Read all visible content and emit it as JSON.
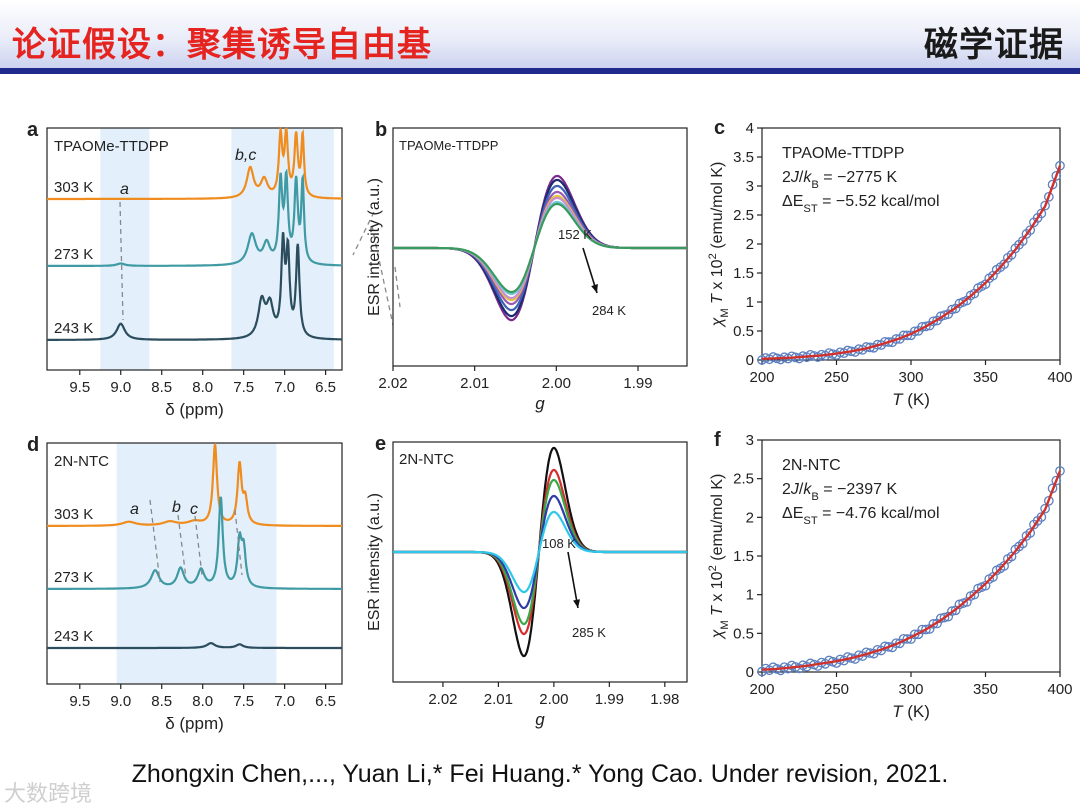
{
  "header": {
    "title": "论证假设：聚集诱导自由基",
    "right_tag": "磁学证据"
  },
  "citation": "Zhongxin Chen,..., Yuan Li,* Fei Huang.* Yong Cao. Under revision, 2021.",
  "watermark": "大数跨境",
  "chart_data": [
    {
      "panel": "a",
      "type": "line",
      "compound": "TPAOMe-TTDPP",
      "xlabel": "δ (ppm)",
      "xlim": [
        9.9,
        6.3
      ],
      "x_reversed": true,
      "xticks": [
        "9.5",
        "9.0",
        "8.5",
        "8.0",
        "7.5",
        "7.0",
        "6.5"
      ],
      "xtick_values": [
        9.5,
        9.0,
        8.5,
        8.0,
        7.5,
        7.0,
        6.5
      ],
      "series": [
        {
          "name": "303 K",
          "color": "#f08c1e"
        },
        {
          "name": "273 K",
          "color": "#3f9aa3"
        },
        {
          "name": "243 K",
          "color": "#2b4d5e"
        }
      ],
      "annotations": [
        "a",
        "b,c"
      ],
      "shaded_regions": [
        [
          9.25,
          8.65
        ],
        [
          7.65,
          6.4
        ]
      ]
    },
    {
      "panel": "b",
      "type": "line",
      "compound": "TPAOMe-TTDPP",
      "xlabel": "g",
      "ylabel": "ESR intensity (a.u.)",
      "xlim": [
        2.02,
        1.984
      ],
      "x_reversed": true,
      "xticks": [
        "2.02",
        "2.01",
        "2.00",
        "1.99"
      ],
      "xtick_values": [
        2.02,
        2.01,
        2.0,
        1.99
      ],
      "temperature_range": [
        "152 K",
        "284 K"
      ],
      "series_colors": [
        "#7a2a8c",
        "#1c2a6e",
        "#3b62b5",
        "#9b59b6",
        "#e4c637",
        "#c98fd1",
        "#6fc8d8",
        "#3a9a5c"
      ]
    },
    {
      "panel": "c",
      "type": "scatter",
      "compound": "TPAOMe-TTDPP",
      "xlabel": "T (K)",
      "ylabel": "χM T x 10² (emu/mol K)",
      "xlim": [
        200,
        400
      ],
      "ylim": [
        0,
        4
      ],
      "xticks": [
        "200",
        "250",
        "300",
        "350",
        "400"
      ],
      "yticks": [
        "0",
        "0.5",
        "1",
        "1.5",
        "2",
        "2.5",
        "3",
        "3.5",
        "4"
      ],
      "fit_J": "2J/kB = −2775 K",
      "fit_dE": "ΔEST = −5.52 kcal/mol",
      "x": [
        200,
        210,
        220,
        230,
        240,
        250,
        260,
        270,
        280,
        290,
        300,
        310,
        320,
        330,
        340,
        350,
        360,
        370,
        380,
        390,
        400
      ],
      "y": [
        0.02,
        0.03,
        0.04,
        0.06,
        0.08,
        0.11,
        0.15,
        0.2,
        0.27,
        0.35,
        0.45,
        0.58,
        0.73,
        0.9,
        1.1,
        1.33,
        1.6,
        1.9,
        2.25,
        2.65,
        3.35
      ]
    },
    {
      "panel": "d",
      "type": "line",
      "compound": "2N-NTC",
      "xlabel": "δ (ppm)",
      "xlim": [
        9.9,
        6.3
      ],
      "x_reversed": true,
      "xticks": [
        "9.5",
        "9.0",
        "8.5",
        "8.0",
        "7.5",
        "7.0",
        "6.5"
      ],
      "xtick_values": [
        9.5,
        9.0,
        8.5,
        8.0,
        7.5,
        7.0,
        6.5
      ],
      "series": [
        {
          "name": "303 K",
          "color": "#f08c1e"
        },
        {
          "name": "273 K",
          "color": "#3f9aa3"
        },
        {
          "name": "243 K",
          "color": "#2b4d5e"
        }
      ],
      "annotations": [
        "a",
        "b",
        "c"
      ],
      "shaded_regions": [
        [
          9.05,
          7.1
        ]
      ]
    },
    {
      "panel": "e",
      "type": "line",
      "compound": "2N-NTC",
      "xlabel": "g",
      "ylabel": "ESR intensity (a.u.)",
      "xlim": [
        2.029,
        1.976
      ],
      "x_reversed": true,
      "xticks": [
        "2.02",
        "2.01",
        "2.00",
        "1.99",
        "1.98"
      ],
      "xtick_values": [
        2.02,
        2.01,
        2.0,
        1.99,
        1.98
      ],
      "temperature_range": [
        "108 K",
        "285 K"
      ],
      "series_colors": [
        "#111111",
        "#d62c2c",
        "#3aa845",
        "#2f3ca8",
        "#2fc8e8"
      ]
    },
    {
      "panel": "f",
      "type": "scatter",
      "compound": "2N-NTC",
      "xlabel": "T (K)",
      "ylabel": "χM T x 10² (emu/mol K)",
      "xlim": [
        200,
        400
      ],
      "ylim": [
        0,
        3
      ],
      "xticks": [
        "200",
        "250",
        "300",
        "350",
        "400"
      ],
      "yticks": [
        "0",
        "0.5",
        "1",
        "1.5",
        "2",
        "2.5",
        "3"
      ],
      "fit_J": "2J/kB = −2397 K",
      "fit_dE": "ΔEST = −4.76 kcal/mol",
      "x": [
        200,
        210,
        220,
        230,
        240,
        250,
        260,
        270,
        280,
        290,
        300,
        310,
        320,
        330,
        340,
        350,
        360,
        370,
        380,
        390,
        400
      ],
      "y": [
        0.03,
        0.04,
        0.06,
        0.08,
        0.11,
        0.14,
        0.18,
        0.23,
        0.29,
        0.36,
        0.45,
        0.55,
        0.67,
        0.81,
        0.97,
        1.14,
        1.34,
        1.56,
        1.81,
        2.1,
        2.6
      ]
    }
  ]
}
